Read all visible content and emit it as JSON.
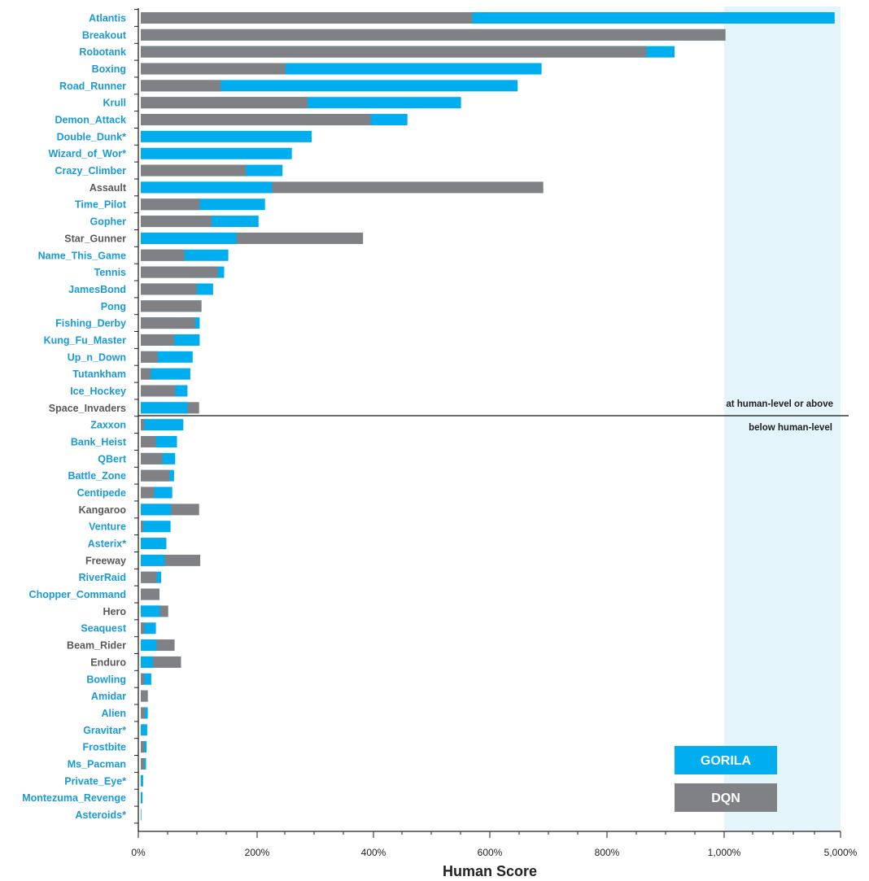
{
  "chart_data": {
    "type": "bar",
    "orientation": "horizontal",
    "xlabel": "Human Score",
    "x_ticks": [
      "0%",
      "200%",
      "400%",
      "600%",
      "800%",
      "1,000%",
      "5,000%"
    ],
    "x_scale": "linear 0–1000%, compressed (log-like) 1000%–5000%",
    "divider": {
      "after": "Space_Invaders",
      "above_text": "at human-level or above",
      "below_text": "below human-level"
    },
    "colors": {
      "gorila": "#00aeef",
      "dqn": "#808184",
      "label_blue": "#1a9ad6",
      "label_gray": "#58595b",
      "shade": "#e3f4fb"
    },
    "legend": [
      {
        "name": "GORILA",
        "color": "#00aeef"
      },
      {
        "name": "DQN",
        "color": "#808184"
      }
    ],
    "games": [
      {
        "name": "Atlantis",
        "gorila": 4800,
        "dqn": 568,
        "gorila_better": true
      },
      {
        "name": "Breakout",
        "gorila": 1045,
        "dqn": 1045,
        "gorila_better": true
      },
      {
        "name": "Robotank",
        "gorila": 915,
        "dqn": 867,
        "gorila_better": true
      },
      {
        "name": "Boxing",
        "gorila": 687,
        "dqn": 248,
        "gorila_better": true
      },
      {
        "name": "Road_Runner",
        "gorila": 646,
        "dqn": 137,
        "gorila_better": true
      },
      {
        "name": "Krull",
        "gorila": 549,
        "dqn": 286,
        "gorila_better": true
      },
      {
        "name": "Demon_Attack",
        "gorila": 457,
        "dqn": 394,
        "gorila_better": true
      },
      {
        "name": "Double_Dunk*",
        "gorila": 293,
        "dqn": 0,
        "gorila_better": true
      },
      {
        "name": "Wizard_of_Wor*",
        "gorila": 259,
        "dqn": 0,
        "gorila_better": true
      },
      {
        "name": "Crazy_Climber",
        "gorila": 243,
        "dqn": 180,
        "gorila_better": true
      },
      {
        "name": "Assault",
        "gorila": 225,
        "dqn": 690,
        "gorila_better": false
      },
      {
        "name": "Time_Pilot",
        "gorila": 213,
        "dqn": 101,
        "gorila_better": true
      },
      {
        "name": "Gopher",
        "gorila": 202,
        "dqn": 121,
        "gorila_better": true
      },
      {
        "name": "Star_Gunner",
        "gorila": 164,
        "dqn": 381,
        "gorila_better": false
      },
      {
        "name": "Name_This_Game",
        "gorila": 150,
        "dqn": 75,
        "gorila_better": true
      },
      {
        "name": "Tennis",
        "gorila": 143,
        "dqn": 132,
        "gorila_better": true
      },
      {
        "name": "JamesBond",
        "gorila": 124,
        "dqn": 96,
        "gorila_better": true
      },
      {
        "name": "Pong",
        "gorila": 104,
        "dqn": 104,
        "gorila_better": true
      },
      {
        "name": "Fishing_Derby",
        "gorila": 101,
        "dqn": 93,
        "gorila_better": true
      },
      {
        "name": "Kung_Fu_Master",
        "gorila": 101,
        "dqn": 57,
        "gorila_better": true
      },
      {
        "name": "Up_n_Down",
        "gorila": 89,
        "dqn": 29,
        "gorila_better": true
      },
      {
        "name": "Tutankham",
        "gorila": 85,
        "dqn": 17,
        "gorila_better": true
      },
      {
        "name": "Ice_Hockey",
        "gorila": 80,
        "dqn": 59,
        "gorila_better": true
      },
      {
        "name": "Space_Invaders",
        "gorila": 80,
        "dqn": 100,
        "gorila_better": false
      },
      {
        "name": "Zaxxon",
        "gorila": 73,
        "dqn": 6,
        "gorila_better": true
      },
      {
        "name": "Bank_Heist",
        "gorila": 62,
        "dqn": 26,
        "gorila_better": true
      },
      {
        "name": "QBert",
        "gorila": 59,
        "dqn": 37,
        "gorila_better": true
      },
      {
        "name": "Battle_Zone",
        "gorila": 57,
        "dqn": 49,
        "gorila_better": true
      },
      {
        "name": "Centipede",
        "gorila": 54,
        "dqn": 23,
        "gorila_better": true
      },
      {
        "name": "Kangaroo",
        "gorila": 52,
        "dqn": 100,
        "gorila_better": false
      },
      {
        "name": "Venture",
        "gorila": 51,
        "dqn": 4,
        "gorila_better": true
      },
      {
        "name": "Asterix*",
        "gorila": 44,
        "dqn": 0,
        "gorila_better": true
      },
      {
        "name": "Freeway",
        "gorila": 41,
        "dqn": 102,
        "gorila_better": false
      },
      {
        "name": "RiverRaid",
        "gorila": 35,
        "dqn": 27,
        "gorila_better": true
      },
      {
        "name": "Chopper_Command",
        "gorila": 32,
        "dqn": 32,
        "gorila_better": true
      },
      {
        "name": "Hero",
        "gorila": 33,
        "dqn": 47,
        "gorila_better": false
      },
      {
        "name": "Seaquest",
        "gorila": 26,
        "dqn": 6,
        "gorila_better": true
      },
      {
        "name": "Beam_Rider",
        "gorila": 27,
        "dqn": 58,
        "gorila_better": false
      },
      {
        "name": "Enduro",
        "gorila": 21,
        "dqn": 69,
        "gorila_better": false
      },
      {
        "name": "Bowling",
        "gorila": 18,
        "dqn": 6,
        "gorila_better": true
      },
      {
        "name": "Amidar",
        "gorila": 12,
        "dqn": 12,
        "gorila_better": true
      },
      {
        "name": "Alien",
        "gorila": 12,
        "dqn": 7,
        "gorila_better": true
      },
      {
        "name": "Gravitar*",
        "gorila": 11,
        "dqn": 0,
        "gorila_better": true
      },
      {
        "name": "Frostbite",
        "gorila": 10,
        "dqn": 6,
        "gorila_better": true
      },
      {
        "name": "Ms_Pacman",
        "gorila": 9,
        "dqn": 6,
        "gorila_better": true
      },
      {
        "name": "Private_Eye*",
        "gorila": 4,
        "dqn": 0,
        "gorila_better": true
      },
      {
        "name": "Montezuma_Revenge",
        "gorila": 3,
        "dqn": 0,
        "gorila_better": true
      },
      {
        "name": "Asteroids*",
        "gorila": 1,
        "dqn": 0,
        "gorila_better": true
      }
    ]
  }
}
